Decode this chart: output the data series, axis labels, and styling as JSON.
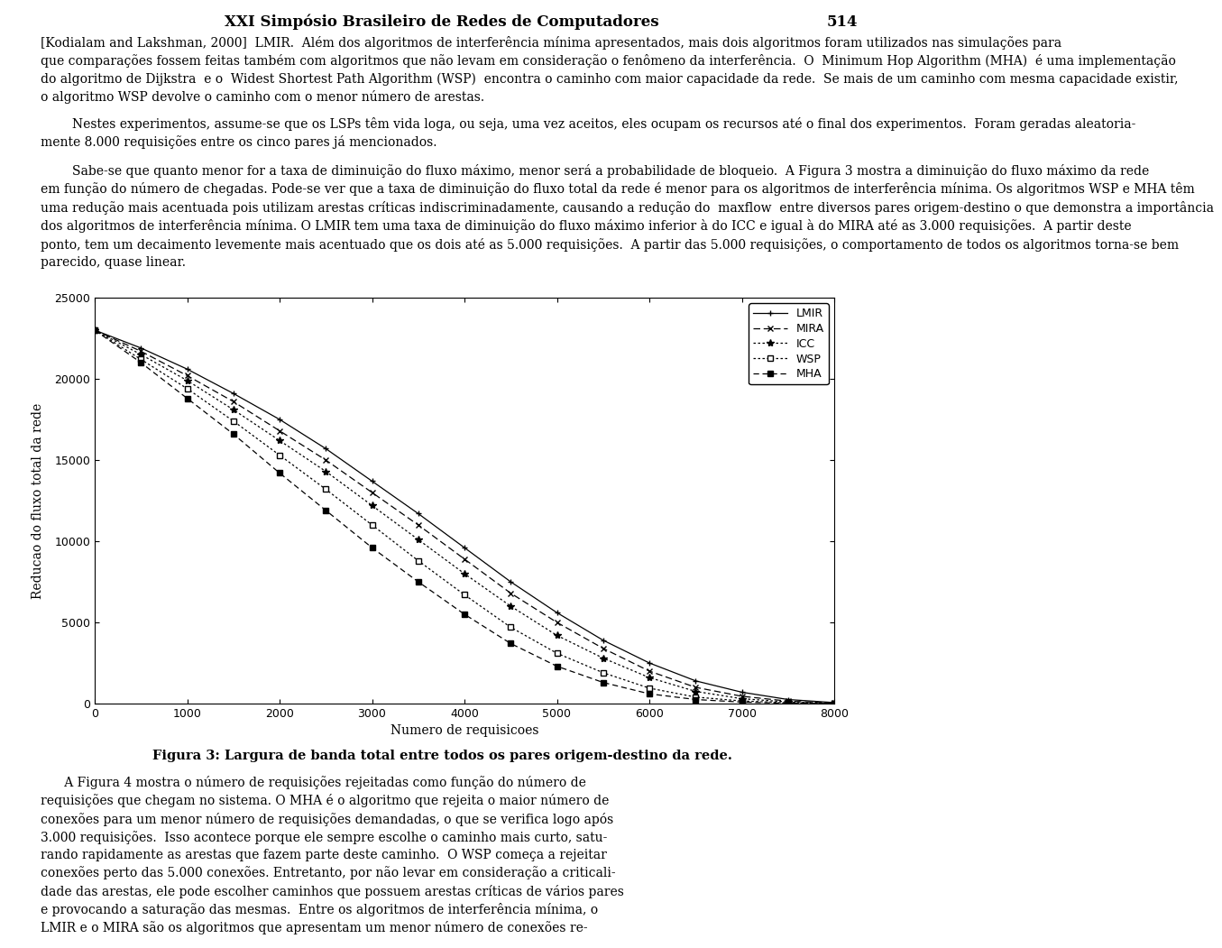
{
  "title": "XXI Simpósio Brasileiro de Redes de Computadores",
  "page_num": "514",
  "para1_lines": [
    "[Kodialam and Lakshman, 2000]  LMIR.  Além dos algoritmos de interferência mínima apresentados, mais dois algoritmos foram utilizados nas simulações para",
    "que comparações fossem feitas também com algoritmos que não levam em consideração o fenômeno da interferência.  O  Minimum Hop Algorithm (MHA)  é uma implementação",
    "do algoritmo de Dijkstra  e o  Widest Shortest Path Algorithm (WSP)  encontra o caminho com maior capacidade da rede.  Se mais de um caminho com mesma capacidade existir,",
    "o algoritmo WSP devolve o caminho com o menor número de arestas."
  ],
  "para2_lines": [
    "Nestes experimentos, assume-se que os LSPs têm vida loga, ou seja, uma vez aceitos, eles ocupam os recursos até o final dos experimentos.  Foram geradas aleatoria-",
    "mente 8.000 requisições entre os cinco pares já mencionados."
  ],
  "para3_lines": [
    "Sabe-se que quanto menor for a taxa de diminuição do fluxo máximo, menor será a probabilidade de bloqueio.  A Figura 3 mostra a diminuição do fluxo máximo da rede",
    "em função do número de chegadas. Pode-se ver que a taxa de diminuição do fluxo total da rede é menor para os algoritmos de interferência mínima. Os algoritmos WSP e MHA têm",
    "uma redução mais acentuada pois utilizam arestas críticas indiscriminadamente, causando a redução do  maxflow  entre diversos pares origem-destino o que demonstra a importância",
    "dos algoritmos de interferência mínima. O LMIR tem uma taxa de diminuição do fluxo máximo inferior à do ICC e igual à do MIRA até as 3.000 requisições.  A partir deste",
    "ponto, tem um decaimento levemente mais acentuado que os dois até as 5.000 requisições.  A partir das 5.000 requisições, o comportamento de todos os algoritmos torna-se bem",
    "parecido, quase linear."
  ],
  "chart": {
    "xlabel": "Numero de requisicoes",
    "ylabel": "Reducao do fluxo total da rede",
    "xlim": [
      0,
      8000
    ],
    "ylim": [
      0,
      25000
    ],
    "xticks": [
      0,
      1000,
      2000,
      3000,
      4000,
      5000,
      6000,
      7000,
      8000
    ],
    "yticks": [
      0,
      5000,
      10000,
      15000,
      20000,
      25000
    ],
    "x_pts": [
      0,
      500,
      1000,
      1500,
      2000,
      2500,
      3000,
      3500,
      4000,
      4500,
      5000,
      5500,
      6000,
      6500,
      7000,
      7500,
      8000
    ],
    "LMIR_y": [
      23000,
      21900,
      20600,
      19100,
      17500,
      15700,
      13700,
      11700,
      9600,
      7500,
      5600,
      3900,
      2500,
      1400,
      700,
      250,
      60
    ],
    "MIRA_y": [
      23000,
      21700,
      20200,
      18600,
      16800,
      15000,
      13000,
      11000,
      8900,
      6800,
      5000,
      3400,
      2000,
      1000,
      450,
      150,
      30
    ],
    "ICC_y": [
      23000,
      21500,
      19900,
      18100,
      16200,
      14300,
      12200,
      10100,
      8000,
      6000,
      4200,
      2800,
      1600,
      750,
      300,
      100,
      20
    ],
    "WSP_y": [
      23000,
      21200,
      19400,
      17400,
      15300,
      13200,
      11000,
      8800,
      6700,
      4700,
      3100,
      1900,
      950,
      400,
      160,
      50,
      10
    ],
    "MHA_y": [
      23000,
      21000,
      18800,
      16600,
      14200,
      11900,
      9600,
      7500,
      5500,
      3700,
      2300,
      1300,
      600,
      250,
      90,
      25,
      5
    ]
  },
  "caption": "Figura 3: Largura de banda total entre todos os pares origem-destino da rede.",
  "para_after_lines": [
    "A Figura 4 mostra o número de requisições rejeitadas como função do número de requisições que chegam no sistema. O MHA é o algoritmo que rejeita o maior número de",
    "requisições que chegam no sistema. O MHA é o algoritmo que rejeita o maior número de conexões para um menor número de requisições demandadas, o que se verifica logo após",
    "3.000 requisições.  Isso acontece porque ele sempre escolhe o caminho mais curto, satu-rando rapidamente as arestas que fazem parte deste caminho.  O WSP começa a rejeitar",
    "conexões perto das 5.000 conexões. Entretanto, por não levar em consideração a criticali-dade das arestas, ele pode escolher caminhos que possuem arestas críticas de vários pares",
    "e provocando a saturação das mesmas.  Entre os algoritmos de interferência mínima, o LMIR e o MIRA são os algoritmos que apresentam um menor número de conexões re-"
  ]
}
